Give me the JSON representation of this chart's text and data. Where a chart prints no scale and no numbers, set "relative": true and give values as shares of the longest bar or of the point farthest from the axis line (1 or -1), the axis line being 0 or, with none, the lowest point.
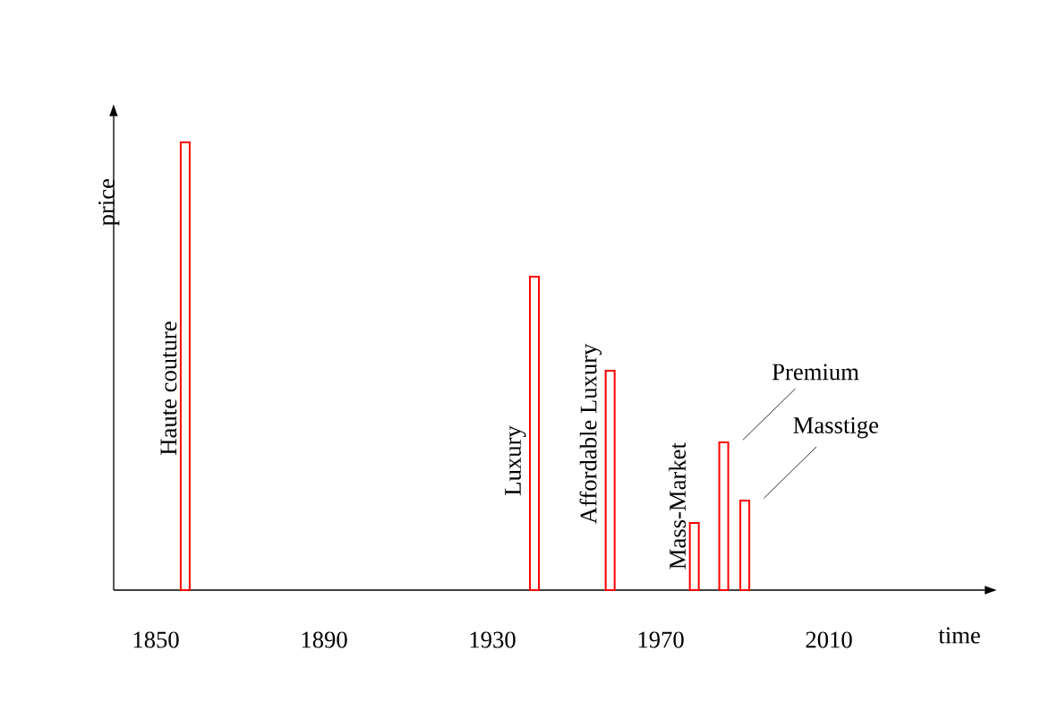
{
  "chart_data": {
    "type": "bar",
    "relative": true,
    "x": [
      1857,
      1940,
      1958,
      1978,
      1985,
      1990
    ],
    "values": [
      1,
      0.7,
      0.49,
      0.15,
      0.33,
      0.2
    ],
    "color": "#ff0000",
    "xlim": [
      1840,
      2047
    ],
    "xticks": [
      1850,
      1890,
      1930,
      1970,
      2010
    ],
    "xlabel": "time",
    "ylabel": "price",
    "annotations": [
      "Haute couture",
      "Luxury",
      "Affordable Luxury",
      "Mass-Market",
      "Premium",
      "Masstige"
    ]
  }
}
